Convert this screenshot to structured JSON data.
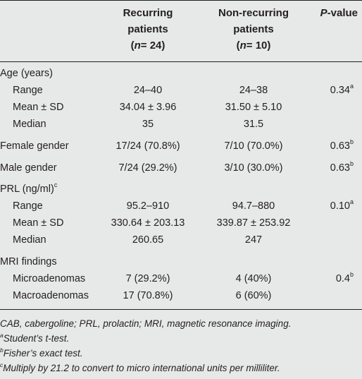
{
  "table": {
    "headers": {
      "recurring": {
        "l1": "Recurring",
        "l2": "patients",
        "n_label": "n",
        "n_value": "= 24"
      },
      "non_recurring": {
        "l1": "Non-recurring",
        "l2": "patients",
        "n_label": "n",
        "n_value": "= 10"
      },
      "pvalue": {
        "p": "P",
        "rest": "-value"
      }
    },
    "rows": [
      {
        "label": "Age (years)",
        "indent": false,
        "rec": "",
        "non": "",
        "p": "",
        "sup": ""
      },
      {
        "label": "Range",
        "indent": true,
        "rec": "24–40",
        "non": "24–38",
        "p": "0.34",
        "sup": "a"
      },
      {
        "label": "Mean ± SD",
        "indent": true,
        "rec": "34.04 ± 3.96",
        "non": "31.50 ± 5.10",
        "p": "",
        "sup": ""
      },
      {
        "label": "Median",
        "indent": true,
        "rec": "35",
        "non": "31.5",
        "p": "",
        "sup": ""
      },
      {
        "label": "Female gender",
        "indent": false,
        "rec": "17/24 (70.8%)",
        "non": "7/10 (70.0%)",
        "p": "0.63",
        "sup": "b"
      },
      {
        "label": "Male gender",
        "indent": false,
        "rec": "7/24 (29.2%)",
        "non": "3/10 (30.0%)",
        "p": "0.63",
        "sup": "b"
      },
      {
        "label": "PRL (ng/ml)",
        "label_sup": "c",
        "indent": false,
        "rec": "",
        "non": "",
        "p": "",
        "sup": ""
      },
      {
        "label": "Range",
        "indent": true,
        "rec": "95.2–910",
        "non": "94.7–880",
        "p": "0.10",
        "sup": "a"
      },
      {
        "label": "Mean ± SD",
        "indent": true,
        "rec": "330.64 ± 203.13",
        "non": "339.87 ± 253.92",
        "p": "",
        "sup": ""
      },
      {
        "label": "Median",
        "indent": true,
        "rec": "260.65",
        "non": "247",
        "p": "",
        "sup": ""
      },
      {
        "label": "MRI findings",
        "indent": false,
        "rec": "",
        "non": "",
        "p": "",
        "sup": ""
      },
      {
        "label": "Microadenomas",
        "indent": true,
        "rec": "7 (29.2%)",
        "non": "4 (40%)",
        "p": "0.4",
        "sup": "b"
      },
      {
        "label": "Macroadenomas",
        "indent": true,
        "rec": "17 (70.8%)",
        "non": "6 (60%)",
        "p": "",
        "sup": ""
      }
    ]
  },
  "footnotes": [
    {
      "sup": "",
      "text": "CAB, cabergoline; PRL, prolactin; MRI, magnetic resonance imaging."
    },
    {
      "sup": "a",
      "text": "Student’s t-test."
    },
    {
      "sup": "b",
      "text": "Fisher’s exact test."
    },
    {
      "sup": "c",
      "text": "Multiply by 21.2 to convert to micro international units per milliliter."
    }
  ],
  "colors": {
    "background": "#e7e8e8",
    "text": "#231f20",
    "rule": "#231f20"
  }
}
